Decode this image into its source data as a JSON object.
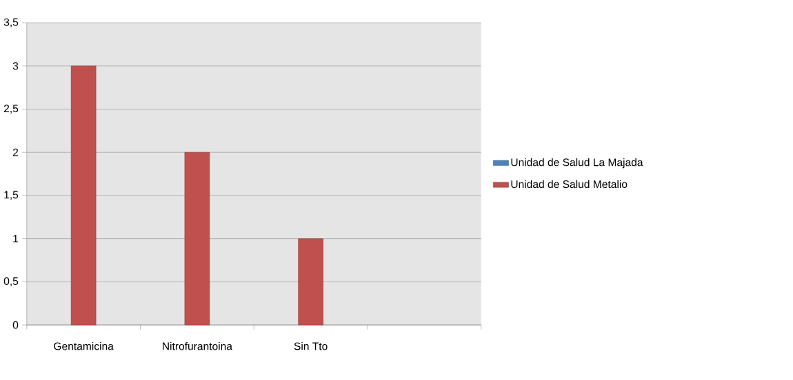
{
  "chart_data": {
    "type": "bar",
    "categories": [
      "Gentamicina",
      "Nitrofurantoina",
      "Sin Tto",
      null
    ],
    "series": [
      {
        "name": "Unidad de Salud La Majada",
        "color": "#4f81bd",
        "values": [
          null,
          null,
          null,
          null
        ]
      },
      {
        "name": "Unidad de Salud Metalio",
        "color": "#c0504d",
        "values": [
          3,
          2,
          1,
          null
        ]
      }
    ],
    "ylim": [
      0,
      3.5
    ],
    "yticks": [
      0,
      {
        "value": 0.5,
        "label": "0,5"
      },
      1,
      {
        "value": 1.5,
        "label": "1,5"
      },
      2,
      {
        "value": 2.5,
        "label": "2,5"
      },
      3,
      {
        "value": 3.5,
        "label": "3,5"
      }
    ],
    "grid": "y",
    "legend": "right"
  }
}
